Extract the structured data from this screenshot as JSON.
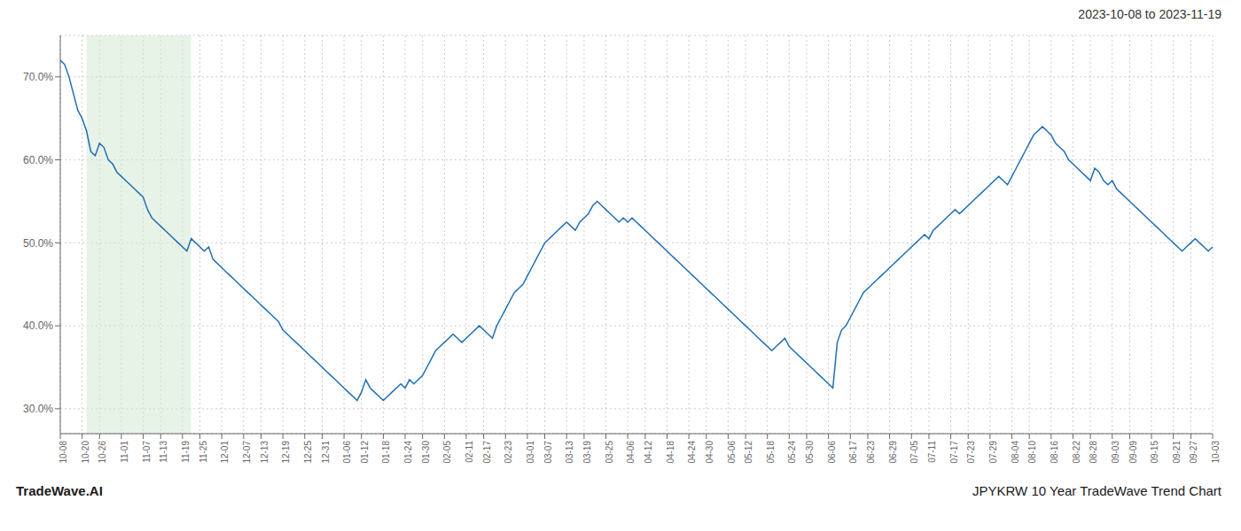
{
  "chart_data": {
    "type": "line",
    "title": "2023-10-08 to 2023-11-19",
    "annotations": [
      "TradeWave.AI",
      "JPYKRW 10 Year TradeWave Trend Chart"
    ],
    "color": "#1f6eb5",
    "grid": true,
    "highlight": {
      "from": 6,
      "to": 30,
      "color": "#d6ead6"
    },
    "ylim": [
      27.0,
      75.0
    ],
    "yticks": [
      {
        "value": 30.0,
        "label": "30.0%"
      },
      {
        "value": 40.0,
        "label": "40.0%"
      },
      {
        "value": 50.0,
        "label": "50.0%"
      },
      {
        "value": 60.0,
        "label": "60.0%"
      },
      {
        "value": 70.0,
        "label": "70.0%"
      }
    ],
    "categories": [
      "10-08",
      null,
      null,
      null,
      null,
      "10-20",
      null,
      null,
      null,
      "10-26",
      null,
      null,
      null,
      null,
      "11-01",
      null,
      null,
      null,
      null,
      "11-07",
      null,
      null,
      null,
      "11-13",
      null,
      null,
      null,
      null,
      "11-19",
      null,
      null,
      null,
      "11-25",
      null,
      null,
      null,
      null,
      "12-01",
      null,
      null,
      null,
      null,
      "12-07",
      null,
      null,
      null,
      "12-13",
      null,
      null,
      null,
      null,
      "12-19",
      null,
      null,
      null,
      null,
      "12-25",
      null,
      null,
      null,
      "12-31",
      null,
      null,
      null,
      null,
      "01-06",
      null,
      null,
      null,
      "01-12",
      null,
      null,
      null,
      null,
      "01-18",
      null,
      null,
      null,
      null,
      "01-24",
      null,
      null,
      null,
      "01-30",
      null,
      null,
      null,
      null,
      "02-05",
      null,
      null,
      null,
      null,
      "02-11",
      null,
      null,
      null,
      "02-17",
      null,
      null,
      null,
      null,
      "02-23",
      null,
      null,
      null,
      null,
      "03-01",
      null,
      null,
      null,
      "03-07",
      null,
      null,
      null,
      null,
      "03-13",
      null,
      null,
      null,
      "03-19",
      null,
      null,
      null,
      null,
      "03-25",
      null,
      null,
      null,
      null,
      "04-06",
      null,
      null,
      null,
      "04-12",
      null,
      null,
      null,
      null,
      "04-18",
      null,
      null,
      null,
      null,
      "04-24",
      null,
      null,
      null,
      "04-30",
      null,
      null,
      null,
      null,
      "05-06",
      null,
      null,
      null,
      "05-12",
      null,
      null,
      null,
      null,
      "05-18",
      null,
      null,
      null,
      null,
      "05-24",
      null,
      null,
      null,
      "05-30",
      null,
      null,
      null,
      null,
      "06-06",
      null,
      null,
      null,
      null,
      "06-17",
      null,
      null,
      null,
      "06-23",
      null,
      null,
      null,
      null,
      "06-29",
      null,
      null,
      null,
      null,
      "07-05",
      null,
      null,
      null,
      "07-11",
      null,
      null,
      null,
      null,
      "07-17",
      null,
      null,
      null,
      "07-23",
      null,
      null,
      null,
      null,
      "07-29",
      null,
      null,
      null,
      null,
      "08-04",
      null,
      null,
      null,
      "08-10",
      null,
      null,
      null,
      null,
      "08-16",
      null,
      null,
      null,
      null,
      "08-22",
      null,
      null,
      null,
      "08-28",
      null,
      null,
      null,
      null,
      "09-03",
      null,
      null,
      null,
      "09-09",
      null,
      null,
      null,
      null,
      "09-15",
      null,
      null,
      null,
      null,
      "09-21",
      null,
      null,
      null,
      "09-27",
      null,
      null,
      null,
      null,
      "10-03"
    ],
    "values": [
      72.0,
      71.5,
      70.0,
      68.0,
      66.0,
      65.0,
      63.5,
      61.0,
      60.5,
      62.0,
      61.5,
      60.0,
      59.5,
      58.5,
      58.0,
      57.5,
      57.0,
      56.5,
      56.0,
      55.5,
      54.0,
      53.0,
      52.5,
      52.0,
      51.5,
      51.0,
      50.5,
      50.0,
      49.5,
      49.0,
      50.5,
      50.0,
      49.5,
      49.0,
      49.5,
      48.0,
      47.5,
      47.0,
      46.5,
      46.0,
      45.5,
      45.0,
      44.5,
      44.0,
      43.5,
      43.0,
      42.5,
      42.0,
      41.5,
      41.0,
      40.5,
      39.5,
      39.0,
      38.5,
      38.0,
      37.5,
      37.0,
      36.5,
      36.0,
      35.5,
      35.0,
      34.5,
      34.0,
      33.5,
      33.0,
      32.5,
      32.0,
      31.5,
      31.0,
      32.0,
      33.5,
      32.5,
      32.0,
      31.5,
      31.0,
      31.5,
      32.0,
      32.5,
      33.0,
      32.5,
      33.5,
      33.0,
      33.5,
      34.0,
      35.0,
      36.0,
      37.0,
      37.5,
      38.0,
      38.5,
      39.0,
      38.5,
      38.0,
      38.5,
      39.0,
      39.5,
      40.0,
      39.5,
      39.0,
      38.5,
      40.0,
      41.0,
      42.0,
      43.0,
      44.0,
      44.5,
      45.0,
      46.0,
      47.0,
      48.0,
      49.0,
      50.0,
      50.5,
      51.0,
      51.5,
      52.0,
      52.5,
      52.0,
      51.5,
      52.5,
      53.0,
      53.5,
      54.5,
      55.0,
      54.5,
      54.0,
      53.5,
      53.0,
      52.5,
      53.0,
      52.5,
      53.0,
      52.5,
      52.0,
      51.5,
      51.0,
      50.5,
      50.0,
      49.5,
      49.0,
      48.5,
      48.0,
      47.5,
      47.0,
      46.5,
      46.0,
      45.5,
      45.0,
      44.5,
      44.0,
      43.5,
      43.0,
      42.5,
      42.0,
      41.5,
      41.0,
      40.5,
      40.0,
      39.5,
      39.0,
      38.5,
      38.0,
      37.5,
      37.0,
      37.5,
      38.0,
      38.5,
      37.5,
      37.0,
      36.5,
      36.0,
      35.5,
      35.0,
      34.5,
      34.0,
      33.5,
      33.0,
      32.5,
      38.0,
      39.5,
      40.0,
      41.0,
      42.0,
      43.0,
      44.0,
      44.5,
      45.0,
      45.5,
      46.0,
      46.5,
      47.0,
      47.5,
      48.0,
      48.5,
      49.0,
      49.5,
      50.0,
      50.5,
      51.0,
      50.5,
      51.5,
      52.0,
      52.5,
      53.0,
      53.5,
      54.0,
      53.5,
      54.0,
      54.5,
      55.0,
      55.5,
      56.0,
      56.5,
      57.0,
      57.5,
      58.0,
      57.5,
      57.0,
      58.0,
      59.0,
      60.0,
      61.0,
      62.0,
      63.0,
      63.5,
      64.0,
      63.5,
      63.0,
      62.0,
      61.5,
      61.0,
      60.0,
      59.5,
      59.0,
      58.5,
      58.0,
      57.5,
      59.0,
      58.5,
      57.5,
      57.0,
      57.5,
      56.5,
      56.0,
      55.5,
      55.0,
      54.5,
      54.0,
      53.5,
      53.0,
      52.5,
      52.0,
      51.5,
      51.0,
      50.5,
      50.0,
      49.5,
      49.0,
      49.5,
      50.0,
      50.5,
      50.0,
      49.5,
      49.0,
      49.5
    ]
  }
}
